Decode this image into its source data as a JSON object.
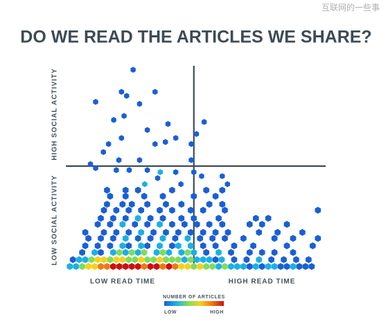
{
  "watermark": "互联网的一些事",
  "chart_data": {
    "type": "hexbin",
    "title": "DO WE READ THE ARTICLES WE SHARE?",
    "x_labels": [
      "LOW READ TIME",
      "HIGH READ TIME"
    ],
    "y_labels": [
      "LOW SOCIAL ACTIVITY",
      "HIGH SOCIAL ACTIVITY"
    ],
    "xlim": [
      0,
      100
    ],
    "ylim": [
      0,
      100
    ],
    "dividers": {
      "x": 49,
      "y": 50
    },
    "colorbar": {
      "title": "NUMBER OF ARTICLES",
      "low": "LOW",
      "high": "HIGH"
    },
    "colorscale": [
      "#1a5fd6",
      "#1ab0e6",
      "#7fdc5c",
      "#f2d21c",
      "#f07812",
      "#cc1010"
    ],
    "rows": [
      {
        "y": 0,
        "x": [
          1,
          3.4,
          5.8,
          8.2,
          10.6,
          13,
          15.4,
          17.8,
          20.2,
          22.6,
          25,
          27.4,
          29.8,
          32.2,
          34.6,
          37,
          39.4,
          41.8,
          44.2,
          46.6,
          49,
          51.4,
          53.8,
          56.2,
          58.6,
          61,
          63.4,
          65.8,
          68.2,
          70.6,
          73,
          75.4,
          77.8,
          80.2,
          82.6,
          85,
          87.4,
          89.8,
          92.2,
          94.6
        ],
        "counts": [
          2,
          2,
          3,
          4,
          4,
          5,
          5,
          6,
          6,
          6,
          6,
          6,
          5,
          6,
          6,
          5,
          6,
          5,
          4,
          4,
          3,
          4,
          3,
          3,
          2,
          3,
          2,
          2,
          2,
          1,
          2,
          1,
          2,
          2,
          1,
          1,
          2,
          1,
          1,
          1
        ]
      },
      {
        "y": 3.4,
        "x": [
          2.2,
          4.6,
          7,
          9.4,
          11.8,
          14.2,
          16.6,
          19,
          21.4,
          23.8,
          26.2,
          28.6,
          31,
          33.4,
          35.8,
          38.2,
          40.6,
          43,
          45.4,
          47.8,
          50.2,
          52.6,
          55,
          57.4,
          59.8,
          64.6,
          69.4,
          74.2,
          79,
          83.8,
          88.6,
          93.4
        ],
        "counts": [
          1,
          2,
          2,
          3,
          4,
          4,
          3,
          4,
          4,
          3,
          3,
          4,
          3,
          3,
          4,
          3,
          3,
          3,
          2,
          3,
          2,
          2,
          2,
          1,
          2,
          1,
          1,
          2,
          1,
          1,
          1,
          1
        ]
      },
      {
        "y": 7,
        "x": [
          5.8,
          10.6,
          13,
          17.8,
          20.2,
          22.6,
          25,
          27.4,
          29.8,
          34.6,
          37,
          39.4,
          44.2,
          46.6,
          49,
          53.8,
          58.6,
          63.4,
          70.6,
          75.4,
          80.2,
          87.4
        ],
        "counts": [
          1,
          2,
          1,
          2,
          3,
          2,
          3,
          2,
          3,
          2,
          3,
          2,
          2,
          3,
          2,
          1,
          2,
          1,
          1,
          1,
          1,
          1
        ]
      },
      {
        "y": 10.3,
        "x": [
          7,
          11.8,
          16.6,
          21.4,
          23.8,
          28.6,
          31,
          35.8,
          40.6,
          43,
          47.8,
          52.6,
          57.4,
          64.6,
          72,
          85,
          95
        ],
        "counts": [
          1,
          1,
          1,
          2,
          1,
          2,
          1,
          2,
          1,
          2,
          2,
          1,
          1,
          1,
          1,
          1,
          1
        ]
      },
      {
        "y": 14,
        "x": [
          8.2,
          13,
          17.8,
          22.6,
          27.4,
          32.2,
          37,
          41.8,
          46.6,
          51.4,
          56.2,
          61,
          68.2,
          80.2,
          87.4,
          97
        ],
        "counts": [
          1,
          1,
          1,
          2,
          1,
          1,
          2,
          1,
          2,
          1,
          1,
          1,
          1,
          1,
          1,
          1
        ]
      },
      {
        "y": 17,
        "x": [
          7,
          14.2,
          19,
          23.8,
          28.6,
          33.4,
          38.2,
          43,
          47.8,
          52.6,
          57.4,
          62.2,
          74.2,
          81.4,
          91
        ],
        "counts": [
          1,
          1,
          1,
          1,
          2,
          1,
          1,
          1,
          1,
          1,
          1,
          1,
          1,
          1,
          1
        ]
      },
      {
        "y": 21,
        "x": [
          11.8,
          16.6,
          21.4,
          26.2,
          31,
          35.8,
          40.6,
          45.4,
          50.2,
          55,
          60,
          70.6,
          75.4,
          85
        ],
        "counts": [
          1,
          1,
          2,
          1,
          1,
          2,
          1,
          1,
          1,
          1,
          1,
          1,
          1,
          1
        ]
      },
      {
        "y": 24,
        "x": [
          13,
          17.8,
          22.6,
          27.4,
          32.2,
          37,
          44.2,
          49,
          58.6,
          73,
          77.8
        ],
        "counts": [
          1,
          1,
          1,
          2,
          1,
          1,
          1,
          1,
          1,
          1,
          1
        ]
      },
      {
        "y": 28,
        "x": [
          14.2,
          19,
          23.8,
          28.6,
          35.8,
          40.6,
          47.8,
          52.6,
          61,
          97
        ],
        "counts": [
          1,
          1,
          1,
          1,
          1,
          1,
          1,
          1,
          1,
          1
        ]
      },
      {
        "y": 31,
        "x": [
          15.4,
          21.4,
          25,
          31,
          38.2,
          44.2,
          55,
          60
        ],
        "counts": [
          1,
          1,
          1,
          1,
          1,
          1,
          1,
          1
        ]
      },
      {
        "y": 35,
        "x": [
          16.6,
          22.6,
          29.8,
          37,
          49,
          57.4
        ],
        "counts": [
          1,
          1,
          1,
          1,
          1,
          1
        ]
      },
      {
        "y": 38,
        "x": [
          15.4,
          22.6,
          27.4,
          40.6,
          53.8,
          60
        ],
        "counts": [
          1,
          1,
          1,
          1,
          1,
          1
        ]
      }
    ],
    "sparse": {
      "x": [
        11,
        36,
        31,
        24,
        19,
        42,
        49,
        60,
        52,
        35,
        44,
        62,
        30,
        9,
        20,
        28,
        48,
        14,
        16,
        34,
        48,
        38,
        42,
        21,
        50,
        31,
        39,
        53,
        18,
        22,
        28,
        11,
        21,
        23,
        34,
        25.5
      ],
      "y": [
        49,
        47,
        48,
        48,
        48,
        47,
        47,
        45,
        45,
        44,
        41,
        41,
        41,
        51,
        53,
        53,
        53,
        57,
        61,
        61,
        61,
        62,
        64,
        64,
        66,
        68,
        71,
        72,
        73,
        75,
        81,
        82,
        87,
        85,
        87,
        98
      ],
      "counts": [
        1,
        2,
        1,
        1,
        1,
        1,
        1,
        1,
        1,
        1,
        1,
        1,
        2,
        1,
        1,
        1,
        1,
        1,
        1,
        1,
        1,
        1,
        1,
        1,
        1,
        1,
        1,
        1,
        1,
        1,
        1,
        1,
        1,
        1,
        1,
        1
      ]
    }
  }
}
